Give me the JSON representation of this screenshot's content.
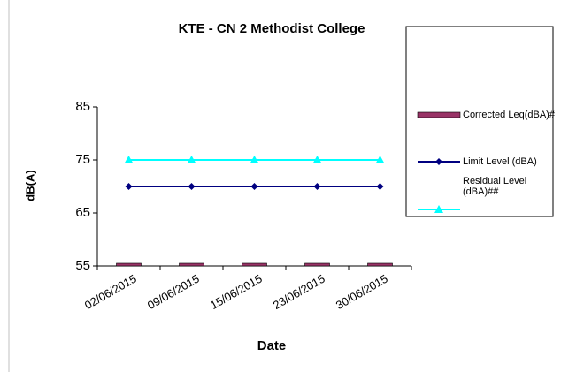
{
  "chart_data": {
    "type": "bar_line",
    "title": "KTE - CN 2 Methodist College",
    "x_label": "Date",
    "y_label": "dB(A)",
    "categories": [
      "02/06/2015",
      "09/06/2015",
      "15/06/2015",
      "23/06/2015",
      "30/06/2015"
    ],
    "series": [
      {
        "name": "Corrected Leq(dBA)#",
        "type": "bar",
        "color": "#993366",
        "values": [
          55,
          55,
          55,
          55,
          55
        ]
      },
      {
        "name": "Limit Level (dBA)",
        "type": "line",
        "marker": "diamond",
        "color": "#000080",
        "values": [
          70,
          70,
          70,
          70,
          70
        ]
      },
      {
        "name": "Residual Level (dBA)##",
        "type": "line",
        "marker": "triangle",
        "color": "#00ffff",
        "values": [
          75,
          75,
          75,
          75,
          75
        ]
      }
    ],
    "ylim": [
      55,
      85
    ],
    "yticks": [
      55,
      65,
      75,
      85
    ],
    "legend": "right"
  }
}
